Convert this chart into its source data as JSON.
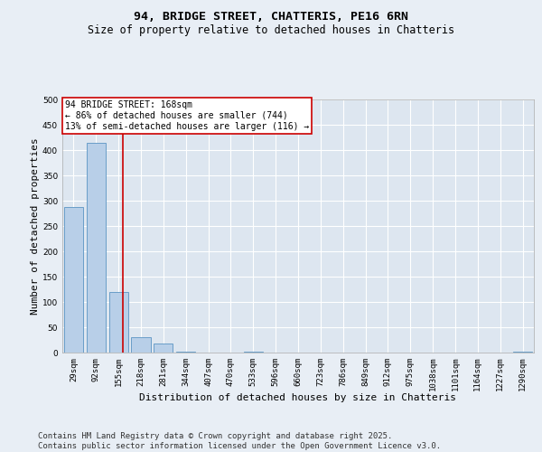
{
  "title": "94, BRIDGE STREET, CHATTERIS, PE16 6RN",
  "subtitle": "Size of property relative to detached houses in Chatteris",
  "xlabel": "Distribution of detached houses by size in Chatteris",
  "ylabel": "Number of detached properties",
  "categories": [
    "29sqm",
    "92sqm",
    "155sqm",
    "218sqm",
    "281sqm",
    "344sqm",
    "407sqm",
    "470sqm",
    "533sqm",
    "596sqm",
    "660sqm",
    "723sqm",
    "786sqm",
    "849sqm",
    "912sqm",
    "975sqm",
    "1038sqm",
    "1101sqm",
    "1164sqm",
    "1227sqm",
    "1290sqm"
  ],
  "values": [
    287,
    415,
    120,
    30,
    18,
    1,
    0,
    0,
    1,
    0,
    0,
    0,
    0,
    0,
    0,
    0,
    0,
    0,
    0,
    0,
    1
  ],
  "bar_color": "#b8cfe8",
  "bar_edge_color": "#6a9ec8",
  "background_color": "#dde6f0",
  "fig_background_color": "#e8eef5",
  "grid_color": "#ffffff",
  "vline_color": "#cc0000",
  "annotation_text": "94 BRIDGE STREET: 168sqm\n← 86% of detached houses are smaller (744)\n13% of semi-detached houses are larger (116) →",
  "annotation_box_color": "#cc0000",
  "ylim": [
    0,
    500
  ],
  "yticks": [
    0,
    50,
    100,
    150,
    200,
    250,
    300,
    350,
    400,
    450,
    500
  ],
  "footer_text": "Contains HM Land Registry data © Crown copyright and database right 2025.\nContains public sector information licensed under the Open Government Licence v3.0.",
  "title_fontsize": 9.5,
  "subtitle_fontsize": 8.5,
  "xlabel_fontsize": 8,
  "ylabel_fontsize": 8,
  "tick_fontsize": 6.5,
  "annotation_fontsize": 7,
  "footer_fontsize": 6.5
}
